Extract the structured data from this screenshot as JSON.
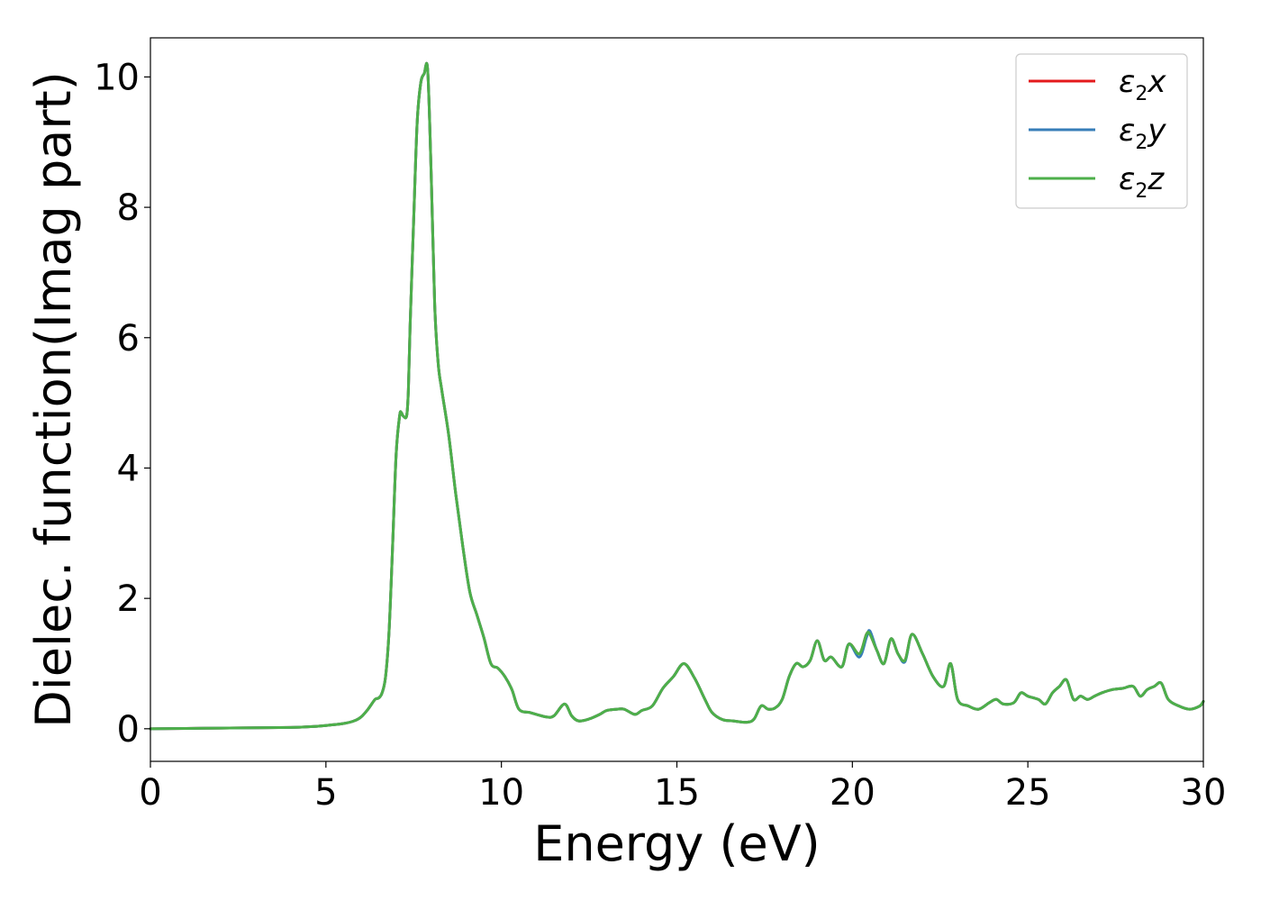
{
  "chart_data": {
    "type": "line",
    "xlabel": "Energy (eV)",
    "ylabel": "Dielec. function(Imag part)",
    "xlim": [
      0,
      30
    ],
    "ylim": [
      -0.5,
      10.6
    ],
    "xticks": [
      0,
      5,
      10,
      15,
      20,
      25,
      30
    ],
    "xtick_labels": [
      "0",
      "5",
      "10",
      "15",
      "20",
      "25",
      "30"
    ],
    "yticks": [
      0,
      2,
      4,
      6,
      8,
      10
    ],
    "ytick_labels": [
      "0",
      "2",
      "4",
      "6",
      "8",
      "10"
    ],
    "grid": false,
    "legend_position": "top-right",
    "legend": [
      {
        "symbol": "ε",
        "subscript": "2",
        "component": "x",
        "color": "#e41a1c"
      },
      {
        "symbol": "ε",
        "subscript": "2",
        "component": "y",
        "color": "#377eb8"
      },
      {
        "symbol": "ε",
        "subscript": "2",
        "component": "z",
        "color": "#4daf4a"
      }
    ],
    "x": [
      0,
      1,
      2,
      3,
      4,
      4.5,
      5,
      5.5,
      5.8,
      6.0,
      6.2,
      6.4,
      6.5,
      6.6,
      6.7,
      6.8,
      6.9,
      7.0,
      7.1,
      7.15,
      7.2,
      7.3,
      7.35,
      7.4,
      7.5,
      7.6,
      7.7,
      7.8,
      7.9,
      8.0,
      8.1,
      8.2,
      8.3,
      8.5,
      8.7,
      8.9,
      9.1,
      9.3,
      9.5,
      9.7,
      9.9,
      10.1,
      10.3,
      10.5,
      10.8,
      11.0,
      11.3,
      11.5,
      11.8,
      12.0,
      12.2,
      12.5,
      12.8,
      13.0,
      13.3,
      13.5,
      13.8,
      14.0,
      14.3,
      14.6,
      14.9,
      15.2,
      15.5,
      15.8,
      16.0,
      16.3,
      16.6,
      17.0,
      17.2,
      17.4,
      17.6,
      17.8,
      18.0,
      18.2,
      18.4,
      18.6,
      18.8,
      19.0,
      19.2,
      19.4,
      19.7,
      19.9,
      20.2,
      20.4,
      20.5,
      20.7,
      20.9,
      21.1,
      21.3,
      21.5,
      21.7,
      22.0,
      22.3,
      22.6,
      22.8,
      23.0,
      23.3,
      23.6,
      23.9,
      24.1,
      24.3,
      24.6,
      24.8,
      25.0,
      25.3,
      25.5,
      25.7,
      25.9,
      26.1,
      26.3,
      26.5,
      26.7,
      26.9,
      27.1,
      27.4,
      27.7,
      28.0,
      28.2,
      28.4,
      28.6,
      28.8,
      29.0,
      29.3,
      29.6,
      29.9,
      30.0
    ],
    "series": [
      {
        "color": "#e41a1c",
        "values": [
          0.0,
          0.005,
          0.01,
          0.015,
          0.02,
          0.03,
          0.05,
          0.08,
          0.12,
          0.18,
          0.3,
          0.45,
          0.47,
          0.55,
          0.8,
          1.5,
          2.8,
          4.2,
          4.8,
          4.85,
          4.8,
          4.8,
          5.2,
          6.2,
          7.8,
          9.3,
          9.9,
          10.05,
          10.1,
          8.5,
          6.5,
          5.6,
          5.2,
          4.5,
          3.6,
          2.8,
          2.1,
          1.75,
          1.4,
          1.0,
          0.93,
          0.8,
          0.6,
          0.3,
          0.25,
          0.22,
          0.18,
          0.2,
          0.38,
          0.2,
          0.12,
          0.15,
          0.22,
          0.28,
          0.3,
          0.3,
          0.22,
          0.28,
          0.35,
          0.62,
          0.8,
          1.0,
          0.78,
          0.45,
          0.25,
          0.14,
          0.12,
          0.1,
          0.15,
          0.35,
          0.3,
          0.32,
          0.45,
          0.8,
          1.0,
          0.95,
          1.05,
          1.35,
          1.05,
          1.1,
          0.95,
          1.3,
          1.15,
          1.45,
          1.45,
          1.2,
          1.0,
          1.38,
          1.15,
          1.05,
          1.45,
          1.15,
          0.8,
          0.65,
          1.0,
          0.45,
          0.35,
          0.3,
          0.4,
          0.45,
          0.38,
          0.4,
          0.55,
          0.5,
          0.45,
          0.38,
          0.55,
          0.65,
          0.75,
          0.45,
          0.5,
          0.45,
          0.5,
          0.55,
          0.6,
          0.62,
          0.65,
          0.5,
          0.6,
          0.65,
          0.7,
          0.45,
          0.35,
          0.3,
          0.35,
          0.42
        ]
      },
      {
        "color": "#377eb8",
        "values": [
          0.0,
          0.005,
          0.01,
          0.015,
          0.02,
          0.03,
          0.05,
          0.08,
          0.12,
          0.18,
          0.3,
          0.45,
          0.47,
          0.55,
          0.8,
          1.5,
          2.8,
          4.2,
          4.8,
          4.85,
          4.8,
          4.8,
          5.2,
          6.2,
          7.8,
          9.3,
          9.9,
          10.05,
          10.1,
          8.5,
          6.5,
          5.6,
          5.2,
          4.5,
          3.6,
          2.8,
          2.1,
          1.75,
          1.4,
          1.0,
          0.93,
          0.8,
          0.6,
          0.3,
          0.25,
          0.22,
          0.18,
          0.2,
          0.38,
          0.2,
          0.12,
          0.15,
          0.22,
          0.28,
          0.3,
          0.3,
          0.22,
          0.28,
          0.35,
          0.62,
          0.8,
          1.0,
          0.78,
          0.45,
          0.25,
          0.14,
          0.12,
          0.1,
          0.15,
          0.35,
          0.3,
          0.32,
          0.45,
          0.8,
          1.0,
          0.95,
          1.05,
          1.35,
          1.05,
          1.1,
          0.95,
          1.3,
          1.1,
          1.4,
          1.5,
          1.2,
          1.0,
          1.38,
          1.15,
          1.03,
          1.45,
          1.15,
          0.8,
          0.65,
          1.0,
          0.45,
          0.35,
          0.3,
          0.4,
          0.45,
          0.38,
          0.4,
          0.55,
          0.5,
          0.45,
          0.38,
          0.55,
          0.65,
          0.75,
          0.45,
          0.5,
          0.45,
          0.5,
          0.55,
          0.6,
          0.62,
          0.65,
          0.5,
          0.6,
          0.65,
          0.7,
          0.45,
          0.35,
          0.3,
          0.35,
          0.42
        ]
      },
      {
        "color": "#4daf4a",
        "values": [
          0.0,
          0.005,
          0.01,
          0.015,
          0.02,
          0.03,
          0.05,
          0.08,
          0.12,
          0.18,
          0.3,
          0.45,
          0.47,
          0.55,
          0.8,
          1.5,
          2.8,
          4.2,
          4.8,
          4.85,
          4.8,
          4.8,
          5.2,
          6.2,
          7.8,
          9.3,
          9.9,
          10.05,
          10.1,
          8.5,
          6.5,
          5.6,
          5.2,
          4.5,
          3.6,
          2.8,
          2.1,
          1.75,
          1.4,
          1.0,
          0.93,
          0.8,
          0.6,
          0.3,
          0.25,
          0.22,
          0.18,
          0.2,
          0.38,
          0.2,
          0.12,
          0.15,
          0.22,
          0.28,
          0.3,
          0.3,
          0.22,
          0.28,
          0.35,
          0.62,
          0.8,
          1.0,
          0.78,
          0.45,
          0.25,
          0.14,
          0.12,
          0.1,
          0.15,
          0.35,
          0.3,
          0.32,
          0.45,
          0.8,
          1.0,
          0.95,
          1.05,
          1.35,
          1.05,
          1.1,
          0.95,
          1.3,
          1.15,
          1.45,
          1.45,
          1.2,
          1.0,
          1.38,
          1.15,
          1.05,
          1.45,
          1.15,
          0.8,
          0.65,
          1.0,
          0.45,
          0.35,
          0.3,
          0.4,
          0.45,
          0.38,
          0.4,
          0.55,
          0.5,
          0.45,
          0.38,
          0.55,
          0.65,
          0.75,
          0.45,
          0.5,
          0.45,
          0.5,
          0.55,
          0.6,
          0.62,
          0.65,
          0.5,
          0.6,
          0.65,
          0.7,
          0.45,
          0.35,
          0.3,
          0.35,
          0.42
        ]
      }
    ]
  }
}
